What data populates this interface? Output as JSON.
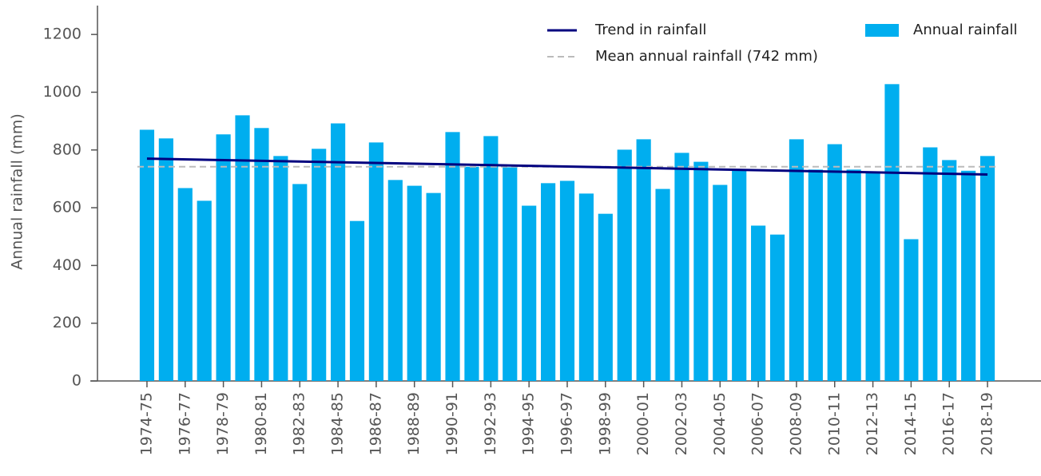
{
  "chart_data": {
    "type": "bar",
    "y_label": "Annual rainfall (mm)",
    "categories": [
      "1974-75",
      null,
      "1976-77",
      null,
      "1978-79",
      null,
      "1980-81",
      null,
      "1982-83",
      null,
      "1984-85",
      null,
      "1986-87",
      null,
      "1988-89",
      null,
      "1990-91",
      null,
      "1992-93",
      null,
      "1994-95",
      null,
      "1996-97",
      null,
      "1998-99",
      null,
      "2000-01",
      null,
      "2002-03",
      null,
      "2004-05",
      null,
      "2006-07",
      null,
      "2008-09",
      null,
      "2010-11",
      null,
      "2012-13",
      null,
      "2014-15",
      null,
      "2016-17",
      null,
      "2018-19"
    ],
    "series": [
      {
        "name": "Annual rainfall",
        "color": "#00aeef",
        "values": [
          870,
          840,
          668,
          624,
          854,
          920,
          876,
          779,
          682,
          804,
          892,
          554,
          826,
          696,
          676,
          651,
          862,
          742,
          848,
          740,
          607,
          685,
          693,
          649,
          579,
          801,
          837,
          665,
          790,
          759,
          679,
          734,
          538,
          507,
          837,
          732,
          820,
          732,
          723,
          1028,
          491,
          809,
          765,
          728,
          779
        ]
      }
    ],
    "trend": {
      "name": "Trend in rainfall",
      "color": "#00007f",
      "start": 770,
      "end": 715
    },
    "mean": {
      "name": "Mean annual rainfall (742 mm)",
      "color": "#bbbbbb",
      "value": 742
    },
    "ylim": [
      0,
      1300
    ],
    "yticks": [
      0,
      200,
      400,
      600,
      800,
      1000,
      1200
    ]
  }
}
